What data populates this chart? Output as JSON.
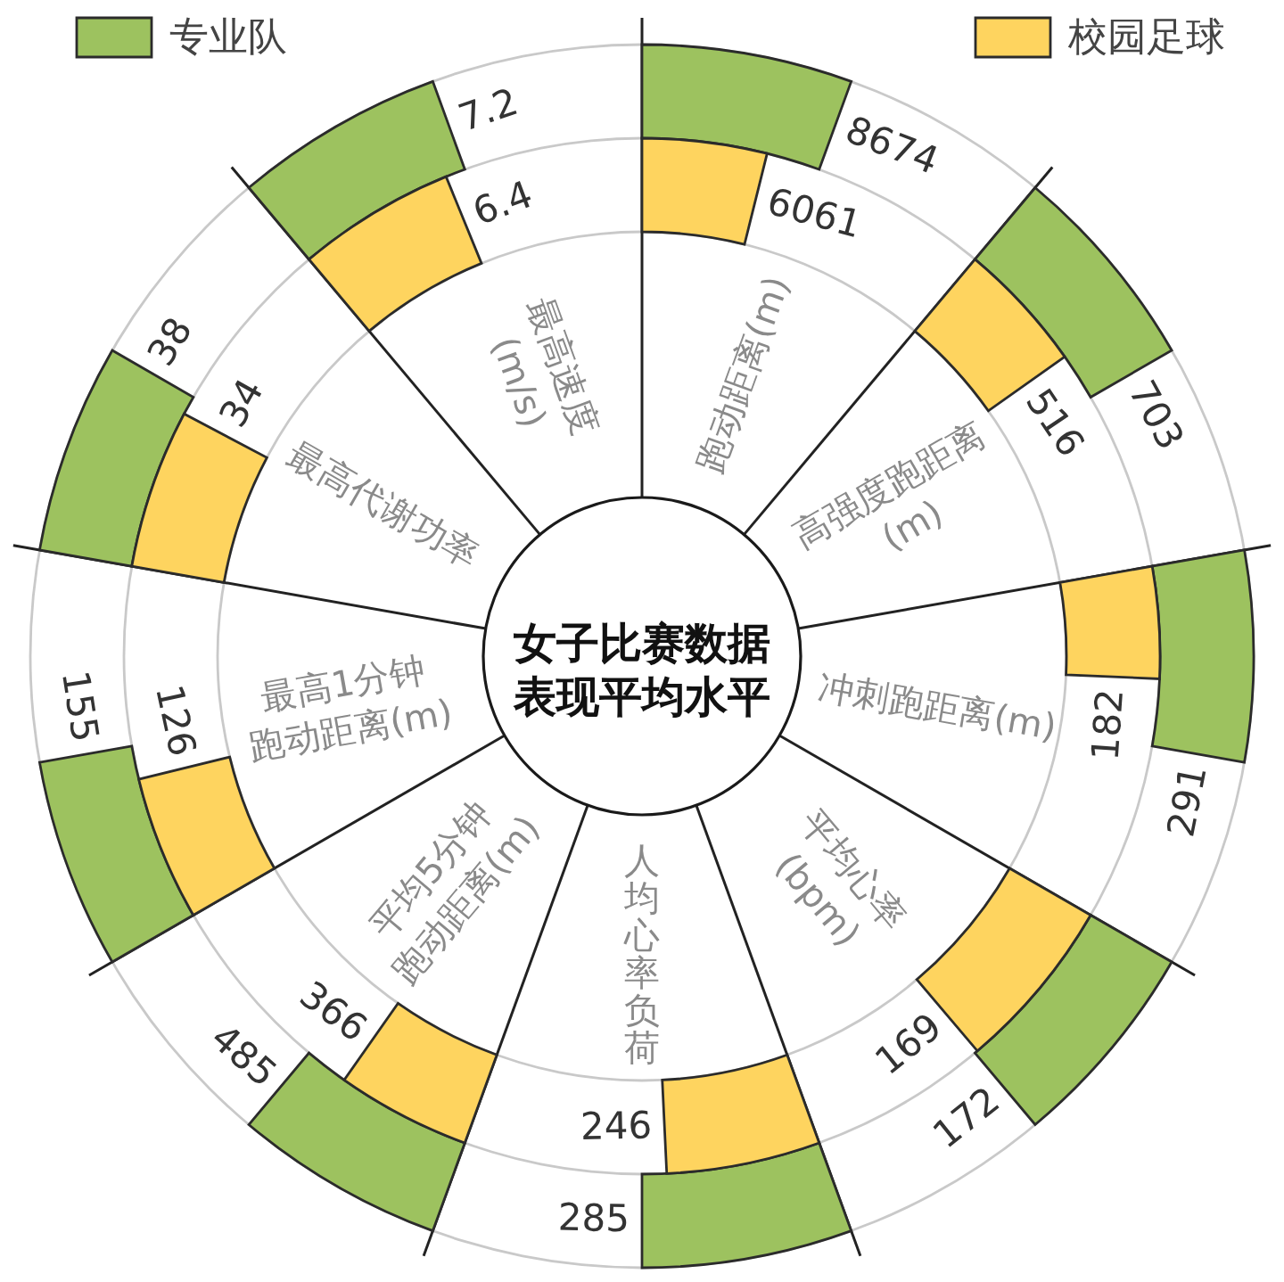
{
  "chart_data": {
    "type": "other",
    "title": "女子比赛数据表现平均水平",
    "categories": [
      "跑动距离(m)",
      "高强度跑距离\n(m)",
      "冲刺跑距离(m)",
      "平均心率\n(bpm)",
      "人均心率负荷",
      "平均5分钟\n跑动距离(m)",
      "最高1分钟\n跑动距离(m)",
      "最高代谢功率",
      "最高速度\n(m/s)"
    ],
    "series": [
      {
        "name": "专业队",
        "color": "#9dc25f",
        "values": [
          8674,
          703,
          291,
          172,
          285,
          485,
          155,
          38,
          7.2
        ]
      },
      {
        "name": "校园足球",
        "color": "#fed45f",
        "values": [
          6061,
          516,
          182,
          169,
          246,
          366,
          126,
          34,
          6.4
        ]
      }
    ],
    "data_labels": true,
    "legend": "top"
  }
}
